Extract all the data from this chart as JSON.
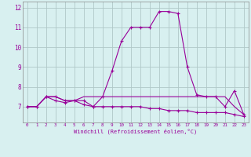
{
  "xlabel": "Windchill (Refroidissement éolien,°C)",
  "x": [
    0,
    1,
    2,
    3,
    4,
    5,
    6,
    7,
    8,
    9,
    10,
    11,
    12,
    13,
    14,
    15,
    16,
    17,
    18,
    19,
    20,
    21,
    22,
    23
  ],
  "line1": [
    7.0,
    7.0,
    7.5,
    7.5,
    7.3,
    7.3,
    7.3,
    7.0,
    7.5,
    8.8,
    10.3,
    11.0,
    11.0,
    11.0,
    11.8,
    11.8,
    11.7,
    9.0,
    7.6,
    7.5,
    7.5,
    7.0,
    7.8,
    6.6
  ],
  "line2": [
    7.0,
    7.0,
    7.5,
    7.5,
    7.3,
    7.3,
    7.5,
    7.5,
    7.5,
    7.5,
    7.5,
    7.5,
    7.5,
    7.5,
    7.5,
    7.5,
    7.5,
    7.5,
    7.5,
    7.5,
    7.5,
    7.5,
    7.0,
    6.6
  ],
  "line3": [
    7.0,
    7.0,
    7.5,
    7.3,
    7.2,
    7.3,
    7.1,
    7.0,
    7.0,
    7.0,
    7.0,
    7.0,
    7.0,
    6.9,
    6.9,
    6.8,
    6.8,
    6.8,
    6.7,
    6.7,
    6.7,
    6.7,
    6.6,
    6.5
  ],
  "line_color": "#990099",
  "bg_color": "#d8f0f0",
  "grid_color": "#b0c8c8",
  "ylim": [
    6.2,
    12.3
  ],
  "yticks": [
    7,
    8,
    9,
    10,
    11,
    12
  ],
  "xticks": [
    0,
    1,
    2,
    3,
    4,
    5,
    6,
    7,
    8,
    9,
    10,
    11,
    12,
    13,
    14,
    15,
    16,
    17,
    18,
    19,
    20,
    21,
    22,
    23
  ]
}
